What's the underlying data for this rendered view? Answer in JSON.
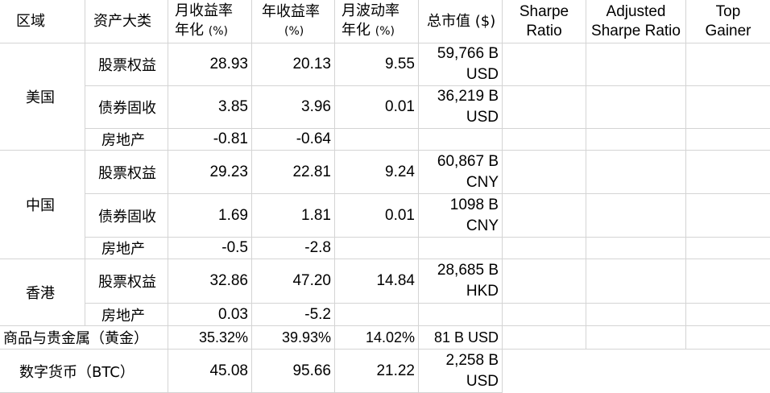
{
  "headers": {
    "region": "区域",
    "asset_class": "资产大类",
    "monthly_return_l1": "月收益率",
    "monthly_return_l2": "年化",
    "monthly_return_unit": "(%)",
    "annual_return_l1": "年收益率",
    "annual_return_unit": "(%)",
    "monthly_vol_l1": "月波动率",
    "monthly_vol_l2": "年化",
    "monthly_vol_unit": "(%)",
    "market_cap": "总市值 ($)",
    "sharpe_l1": "Sharpe",
    "sharpe_l2": "Ratio",
    "adj_sharpe_l1": "Adjusted",
    "adj_sharpe_l2": "Sharpe Ratio",
    "top_gainer_l1": "Top",
    "top_gainer_l2": "Gainer"
  },
  "regions": {
    "us": "美国",
    "cn": "中国",
    "hk": "香港"
  },
  "rows": {
    "us_equity": {
      "asset": "股票权益",
      "monthly": "28.93",
      "annual": "20.13",
      "vol": "9.55",
      "cap_l1": "59,766 B",
      "cap_l2": "USD"
    },
    "us_bond": {
      "asset": "债券固收",
      "monthly": "3.85",
      "annual": "3.96",
      "vol": "0.01",
      "cap_l1": "36,219 B",
      "cap_l2": "USD"
    },
    "us_re": {
      "asset": "房地产",
      "monthly": "-0.81",
      "annual": "-0.64",
      "vol": "",
      "cap_l1": "",
      "cap_l2": ""
    },
    "cn_equity": {
      "asset": "股票权益",
      "monthly": "29.23",
      "annual": "22.81",
      "vol": "9.24",
      "cap_l1": "60,867 B",
      "cap_l2": "CNY"
    },
    "cn_bond": {
      "asset": "债券固收",
      "monthly": "1.69",
      "annual": "1.81",
      "vol": "0.01",
      "cap_l1": "1098 B",
      "cap_l2": "CNY"
    },
    "cn_re": {
      "asset": "房地产",
      "monthly": "-0.5",
      "annual": "-2.8",
      "vol": "",
      "cap_l1": "",
      "cap_l2": ""
    },
    "hk_equity": {
      "asset": "股票权益",
      "monthly": "32.86",
      "annual": "47.20",
      "vol": "14.84",
      "cap_l1": "28,685 B",
      "cap_l2": "HKD"
    },
    "hk_re": {
      "asset": "房地产",
      "monthly": "0.03",
      "annual": "-5.2",
      "vol": "",
      "cap_l1": "",
      "cap_l2": ""
    },
    "gold": {
      "label": "商品与贵金属（黄金）",
      "monthly": "35.32%",
      "annual": "39.93%",
      "vol": "14.02%",
      "cap": "81 B USD"
    },
    "btc": {
      "label": "数字货币（BTC）",
      "monthly": "45.08",
      "annual": "95.66",
      "vol": "21.22",
      "cap_l1": "2,258 B",
      "cap_l2": "USD"
    }
  }
}
